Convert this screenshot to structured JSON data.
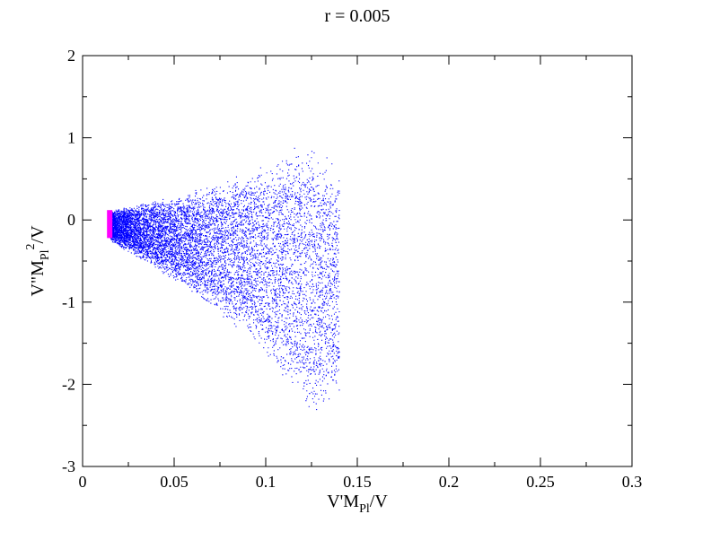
{
  "chart_data": {
    "type": "scatter",
    "title": "r = 0.005",
    "xlabel": {
      "base": "V'M",
      "sub": "Pl",
      "tail": "/V"
    },
    "ylabel": {
      "base": "V\"M",
      "sub": "Pl",
      "sup": "2",
      "tail": "/V"
    },
    "xlim": [
      0,
      0.3
    ],
    "ylim": [
      -3,
      2
    ],
    "x_ticks": [
      0,
      0.05,
      0.1,
      0.15,
      0.2,
      0.25,
      0.3
    ],
    "x_tick_labels": [
      "0",
      "0.05",
      "0.1",
      "0.15",
      "0.2",
      "0.25",
      "0.3"
    ],
    "y_ticks": [
      -3,
      -2,
      -1,
      0,
      1,
      2
    ],
    "y_tick_labels": [
      "-3",
      "-2",
      "-1",
      "0",
      "1",
      "2"
    ],
    "grid": false,
    "legend": "none",
    "series": [
      {
        "color": "#0000ff",
        "marker": "dot",
        "region": {
          "x_range": [
            0.015,
            0.14
          ],
          "y_upper_at": [
            [
              0.015,
              0.12
            ],
            [
              0.05,
              0.3
            ],
            [
              0.09,
              0.6
            ],
            [
              0.125,
              1.0
            ],
            [
              0.14,
              0.6
            ]
          ],
          "y_lower_at": [
            [
              0.015,
              -0.25
            ],
            [
              0.05,
              -0.75
            ],
            [
              0.09,
              -1.4
            ],
            [
              0.125,
              -2.4
            ],
            [
              0.14,
              -2.2
            ]
          ]
        }
      },
      {
        "color": "#ff00ff",
        "marker": "bar",
        "x": 0.0148,
        "y_range": [
          -0.22,
          0.12
        ]
      }
    ]
  }
}
